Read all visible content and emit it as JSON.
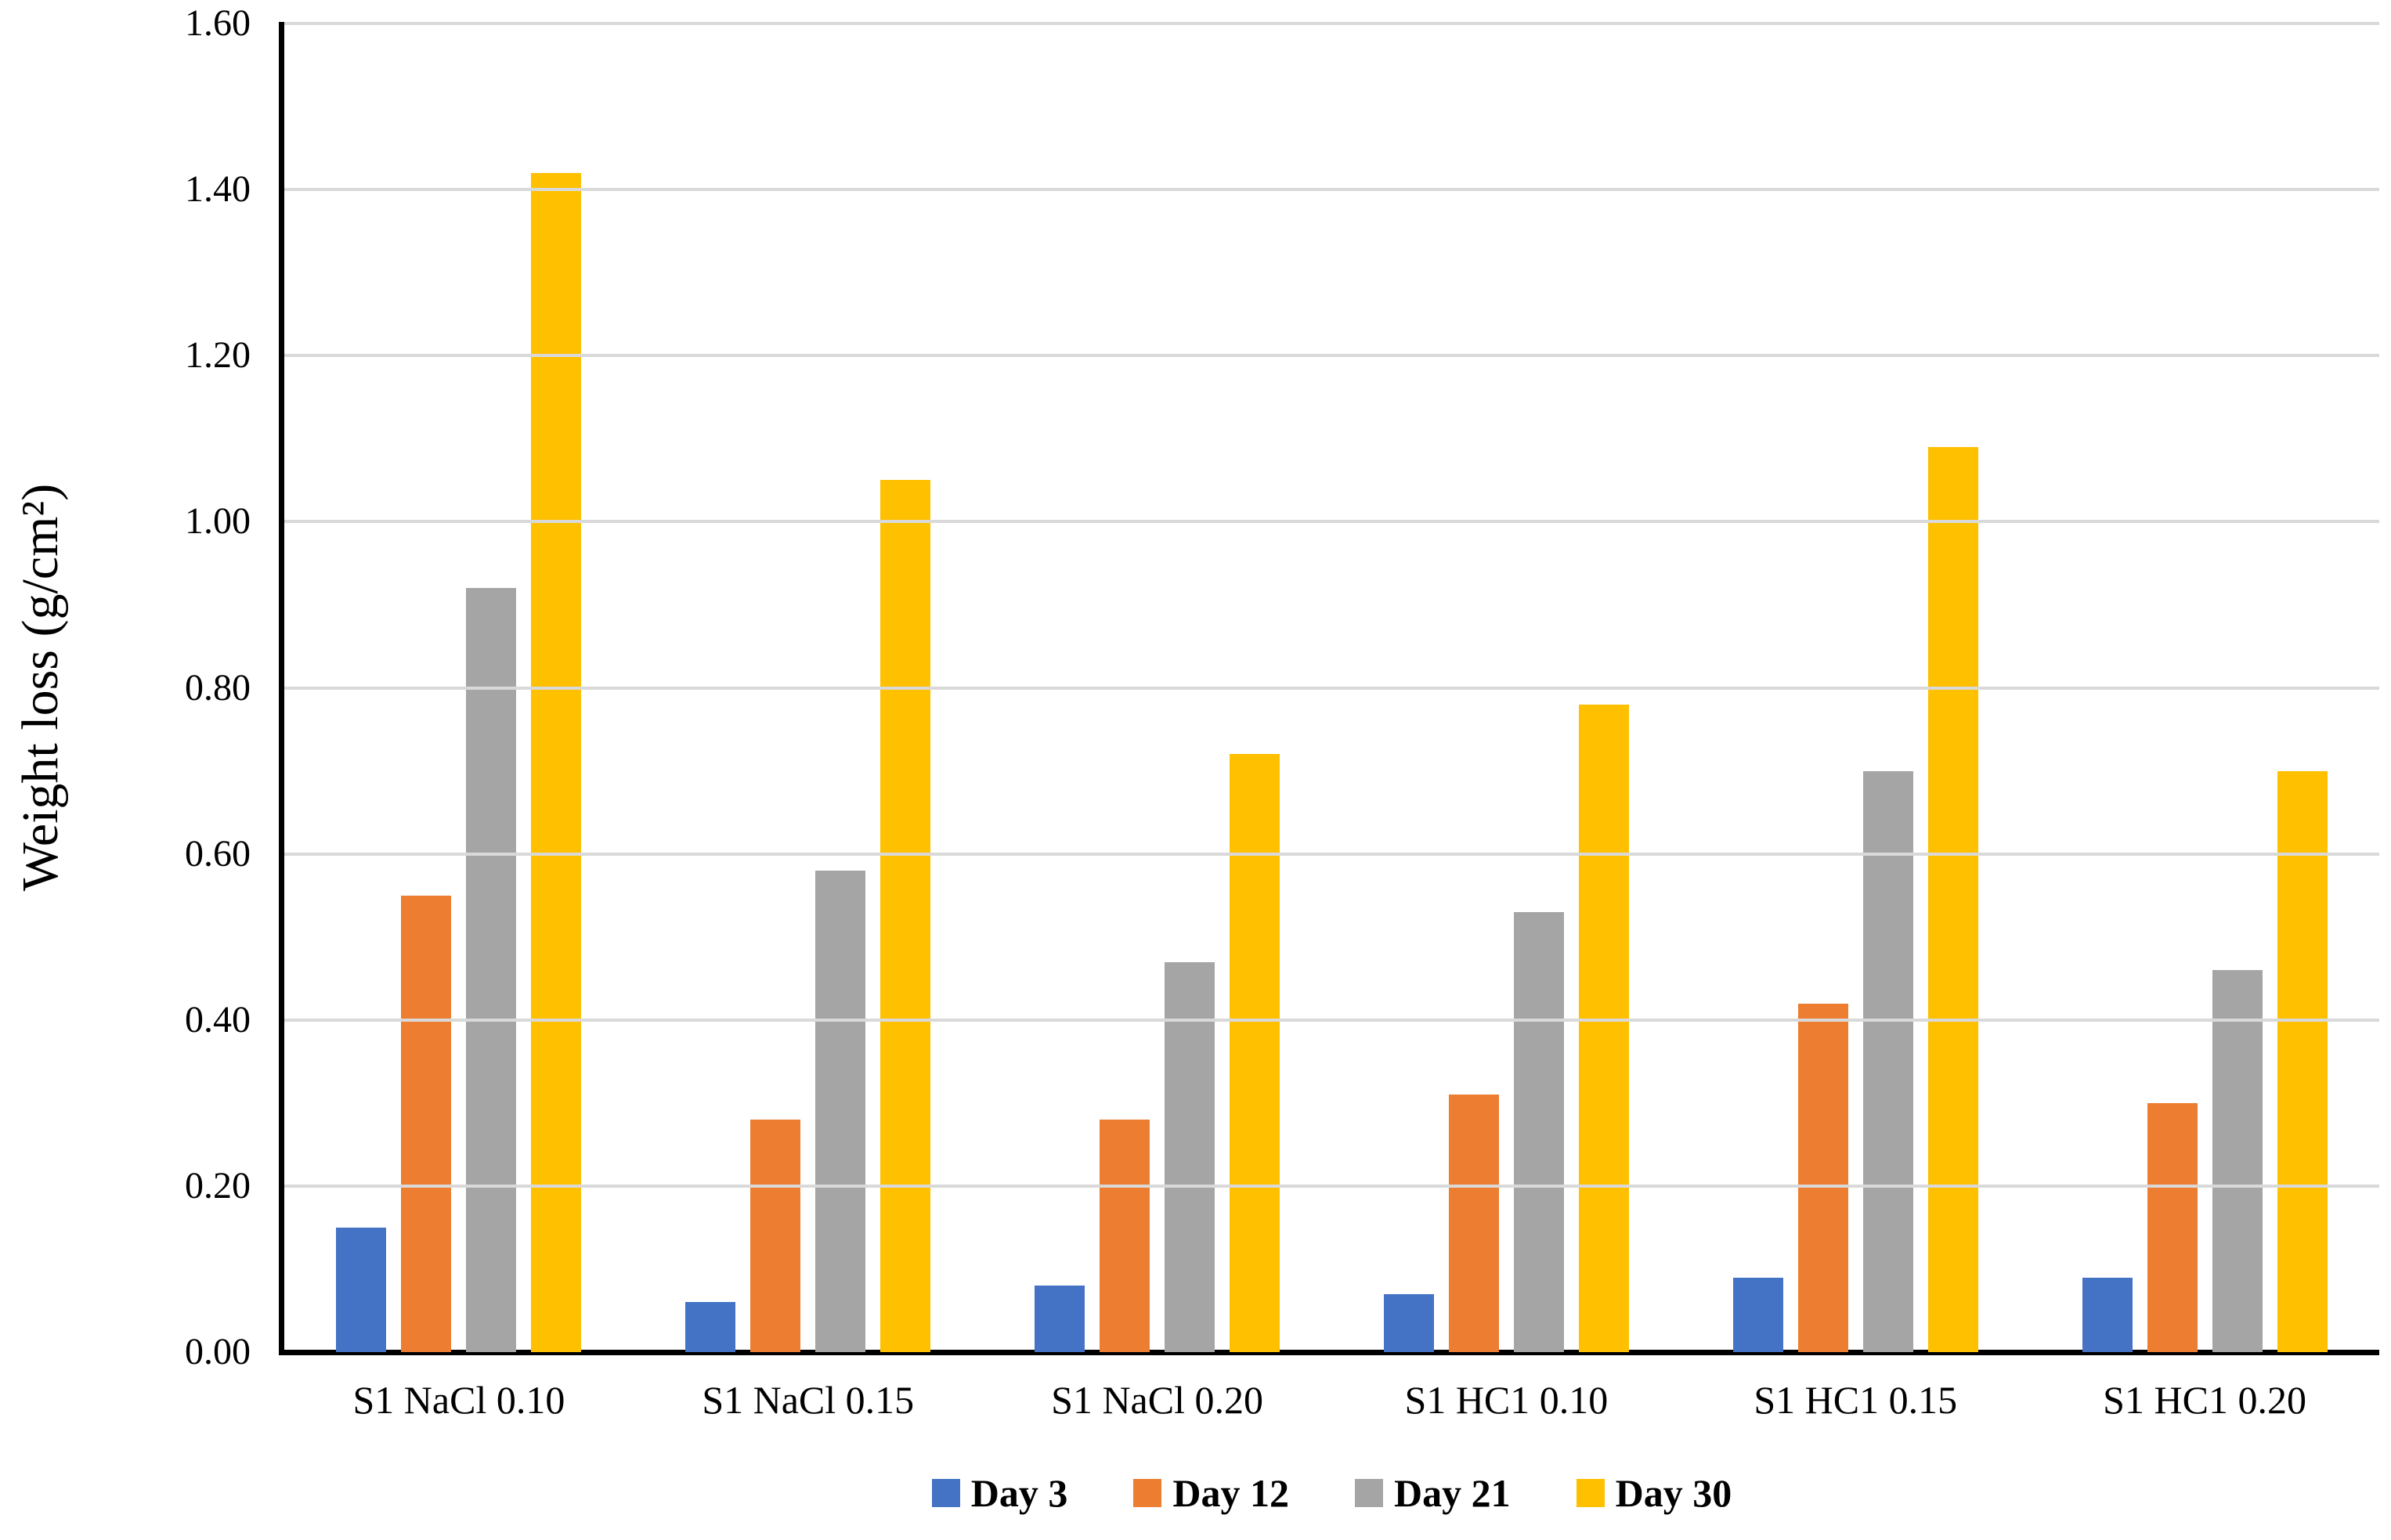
{
  "chart_data": {
    "type": "bar",
    "title": "",
    "xlabel": "",
    "ylabel": "Weight loss (g/cm²)",
    "ylim": [
      0,
      1.6
    ],
    "ytick_step": 0.2,
    "yticks": [
      "0.00",
      "0.20",
      "0.40",
      "0.60",
      "0.80",
      "1.00",
      "1.20",
      "1.40",
      "1.60"
    ],
    "grid": true,
    "legend_position": "bottom-center",
    "categories": [
      "S1 NaCl 0.10",
      "S1 NaCl 0.15",
      "S1 NaCl 0.20",
      "S1 HC1 0.10",
      "S1 HC1 0.15",
      "S1 HC1 0.20"
    ],
    "series": [
      {
        "name": "Day 3",
        "color": "#4472C4",
        "values": [
          0.15,
          0.06,
          0.08,
          0.07,
          0.09,
          0.09
        ]
      },
      {
        "name": "Day 12",
        "color": "#ED7D31",
        "values": [
          0.55,
          0.28,
          0.28,
          0.31,
          0.42,
          0.3
        ]
      },
      {
        "name": "Day 21",
        "color": "#A5A5A5",
        "values": [
          0.92,
          0.58,
          0.47,
          0.53,
          0.7,
          0.46
        ]
      },
      {
        "name": "Day 30",
        "color": "#FFC000",
        "values": [
          1.42,
          1.05,
          0.72,
          0.78,
          1.09,
          0.7
        ]
      }
    ]
  },
  "colors": {
    "background": "#FFFFFF",
    "gridline": "#D9D9D9",
    "axis": "#000000",
    "text": "#000000"
  }
}
